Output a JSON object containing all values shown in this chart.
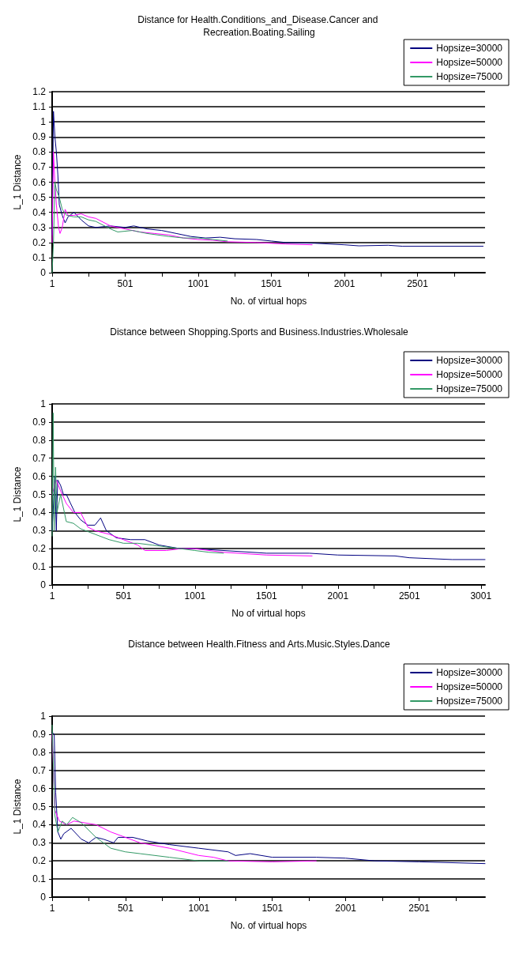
{
  "chart_data": [
    {
      "type": "line",
      "title": "Distance for Health.Conditions_and_Disease.Cancer and Recreation.Boating.Sailing",
      "xlabel": "No. of virtual hops",
      "ylabel": "L_1 Distance",
      "xlim": [
        1,
        2963
      ],
      "xticks": [
        1,
        {
          "value": 251,
          "label": null
        },
        501,
        {
          "value": 751,
          "label": null
        },
        1001,
        {
          "value": 1251,
          "label": null
        },
        1501,
        {
          "value": 1751,
          "label": null
        },
        2001,
        {
          "value": 2251,
          "label": null
        },
        2501,
        {
          "value": 2751,
          "label": null
        }
      ],
      "ylim": [
        0,
        1.2
      ],
      "yticks": [
        0,
        0.1,
        0.2,
        0.3,
        0.4,
        0.5,
        0.6,
        0.7,
        0.8,
        0.9,
        1,
        1.1,
        1.2
      ],
      "grid": "y",
      "legend": "top right",
      "marker": "none",
      "line_style": "solid",
      "series": [
        {
          "name": "Hopsize=30000",
          "color": "#000080",
          "x": [
            1,
            10,
            20,
            30,
            40,
            50,
            70,
            90,
            110,
            150,
            200,
            250,
            300,
            400,
            500,
            560,
            650,
            750,
            850,
            950,
            1050,
            1150,
            1250,
            1400,
            1500,
            1600,
            1800,
            2000,
            2100,
            2300,
            2400,
            2950
          ],
          "values": [
            0.25,
            1.07,
            0.9,
            0.8,
            0.65,
            0.45,
            0.38,
            0.33,
            0.37,
            0.4,
            0.35,
            0.31,
            0.3,
            0.31,
            0.3,
            0.31,
            0.29,
            0.28,
            0.26,
            0.24,
            0.23,
            0.235,
            0.225,
            0.22,
            0.21,
            0.2,
            0.195,
            0.185,
            0.178,
            0.182,
            0.175,
            0.175
          ]
        },
        {
          "name": "Hopsize=50000",
          "color": "#ff00ff",
          "x": [
            1,
            10,
            20,
            30,
            45,
            55,
            70,
            90,
            110,
            150,
            200,
            250,
            300,
            400,
            500,
            600,
            700,
            800,
            900,
            1000,
            1100,
            1200,
            1400,
            1600,
            1780
          ],
          "values": [
            0.2,
            0.8,
            0.6,
            0.45,
            0.3,
            0.26,
            0.3,
            0.42,
            0.38,
            0.38,
            0.39,
            0.37,
            0.36,
            0.31,
            0.29,
            0.27,
            0.26,
            0.25,
            0.23,
            0.22,
            0.215,
            0.205,
            0.2,
            0.19,
            0.185
          ]
        },
        {
          "name": "Hopsize=75000",
          "color": "#339966",
          "x": [
            1,
            10,
            20,
            30,
            50,
            70,
            100,
            150,
            200,
            250,
            300,
            400,
            450,
            550,
            650,
            800,
            900,
            1000,
            1100,
            1200
          ],
          "values": [
            0,
            0.2,
            0.6,
            0.55,
            0.5,
            0.42,
            0.38,
            0.37,
            0.37,
            0.35,
            0.34,
            0.29,
            0.27,
            0.28,
            0.26,
            0.24,
            0.23,
            0.23,
            0.22,
            0.21
          ]
        }
      ]
    },
    {
      "type": "line",
      "title": "Distance between Shopping.Sports and Business.Industries.Wholesale",
      "xlabel": "No of virtual hops",
      "ylabel": "L_1 Distance",
      "xlim": [
        1,
        3030
      ],
      "xticks": [
        1,
        {
          "value": 251,
          "label": null
        },
        501,
        {
          "value": 751,
          "label": null
        },
        1001,
        {
          "value": 1251,
          "label": null
        },
        1501,
        {
          "value": 1751,
          "label": null
        },
        2001,
        {
          "value": 2251,
          "label": null
        },
        2501,
        {
          "value": 2751,
          "label": null
        },
        3001
      ],
      "ylim": [
        0,
        1
      ],
      "yticks": [
        0,
        0.1,
        0.2,
        0.3,
        0.4,
        0.5,
        0.6,
        0.7,
        0.8,
        0.9,
        1
      ],
      "grid": "y",
      "legend": "top right",
      "marker": "none",
      "line_style": "solid",
      "series": [
        {
          "name": "Hopsize=30000",
          "color": "#000080",
          "x": [
            1,
            20,
            30,
            40,
            60,
            80,
            100,
            130,
            160,
            200,
            250,
            300,
            340,
            380,
            450,
            550,
            650,
            750,
            900,
            1000,
            1500,
            1800,
            2000,
            2400,
            2500,
            2800,
            3030
          ],
          "values": [
            0.3,
            0.6,
            0.3,
            0.58,
            0.55,
            0.5,
            0.5,
            0.45,
            0.4,
            0.36,
            0.33,
            0.33,
            0.37,
            0.3,
            0.26,
            0.25,
            0.25,
            0.22,
            0.2,
            0.2,
            0.175,
            0.175,
            0.165,
            0.16,
            0.15,
            0.14,
            0.14
          ]
        },
        {
          "name": "Hopsize=50000",
          "color": "#ff00ff",
          "x": [
            1,
            30,
            60,
            100,
            150,
            200,
            250,
            300,
            400,
            500,
            600,
            650,
            800,
            900,
            1000,
            1200,
            1500,
            1820
          ],
          "values": [
            0.5,
            0.58,
            0.52,
            0.45,
            0.4,
            0.4,
            0.32,
            0.3,
            0.28,
            0.25,
            0.22,
            0.19,
            0.19,
            0.2,
            0.2,
            0.18,
            0.165,
            0.16
          ]
        },
        {
          "name": "Hopsize=75000",
          "color": "#339966",
          "x": [
            1,
            8,
            15,
            25,
            35,
            60,
            100,
            150,
            200,
            300,
            400,
            500,
            600,
            700,
            900,
            1000,
            1100,
            1200
          ],
          "values": [
            0.27,
            0.95,
            0.3,
            0.65,
            0.4,
            0.5,
            0.35,
            0.34,
            0.31,
            0.28,
            0.25,
            0.23,
            0.23,
            0.22,
            0.2,
            0.19,
            0.18,
            0.175
          ]
        }
      ]
    },
    {
      "type": "line",
      "title": "Distance between Health.Fitness and Arts.Music.Styles.Dance",
      "xlabel": "No. of virtual hops",
      "ylabel": "L_1 Distance",
      "xlim": [
        1,
        2950
      ],
      "xticks": [
        1,
        {
          "value": 251,
          "label": null
        },
        501,
        {
          "value": 751,
          "label": null
        },
        1001,
        {
          "value": 1251,
          "label": null
        },
        1501,
        {
          "value": 1751,
          "label": null
        },
        2001,
        {
          "value": 2251,
          "label": null
        },
        2501,
        {
          "value": 2751,
          "label": null
        }
      ],
      "ylim": [
        0,
        1
      ],
      "yticks": [
        0,
        0.1,
        0.2,
        0.3,
        0.4,
        0.5,
        0.6,
        0.7,
        0.8,
        0.9,
        1
      ],
      "grid": "y",
      "legend": "top right",
      "marker": "none",
      "line_style": "solid",
      "series": [
        {
          "name": "Hopsize=30000",
          "color": "#000080",
          "x": [
            1,
            15,
            25,
            40,
            60,
            80,
            130,
            200,
            250,
            300,
            350,
            420,
            450,
            550,
            650,
            800,
            1000,
            1200,
            1250,
            1350,
            1500,
            1800,
            2000,
            2200,
            2500,
            2950
          ],
          "values": [
            0.91,
            0.9,
            0.58,
            0.36,
            0.32,
            0.35,
            0.38,
            0.32,
            0.3,
            0.33,
            0.32,
            0.3,
            0.33,
            0.33,
            0.31,
            0.29,
            0.27,
            0.25,
            0.23,
            0.24,
            0.22,
            0.22,
            0.215,
            0.2,
            0.195,
            0.185
          ]
        },
        {
          "name": "Hopsize=50000",
          "color": "#ff00ff",
          "x": [
            1,
            20,
            50,
            100,
            150,
            300,
            400,
            500,
            600,
            800,
            1000,
            1100,
            1200,
            1500,
            1800
          ],
          "values": [
            0.9,
            0.48,
            0.42,
            0.4,
            0.42,
            0.4,
            0.36,
            0.33,
            0.3,
            0.27,
            0.23,
            0.22,
            0.2,
            0.195,
            0.2
          ]
        },
        {
          "name": "Hopsize=75000",
          "color": "#339966",
          "x": [
            1,
            20,
            40,
            70,
            100,
            140,
            200,
            300,
            400,
            500,
            600,
            800,
            1000,
            1200
          ],
          "values": [
            0.95,
            0.45,
            0.36,
            0.42,
            0.4,
            0.44,
            0.41,
            0.33,
            0.27,
            0.25,
            0.24,
            0.22,
            0.2,
            0.2
          ]
        }
      ]
    }
  ]
}
